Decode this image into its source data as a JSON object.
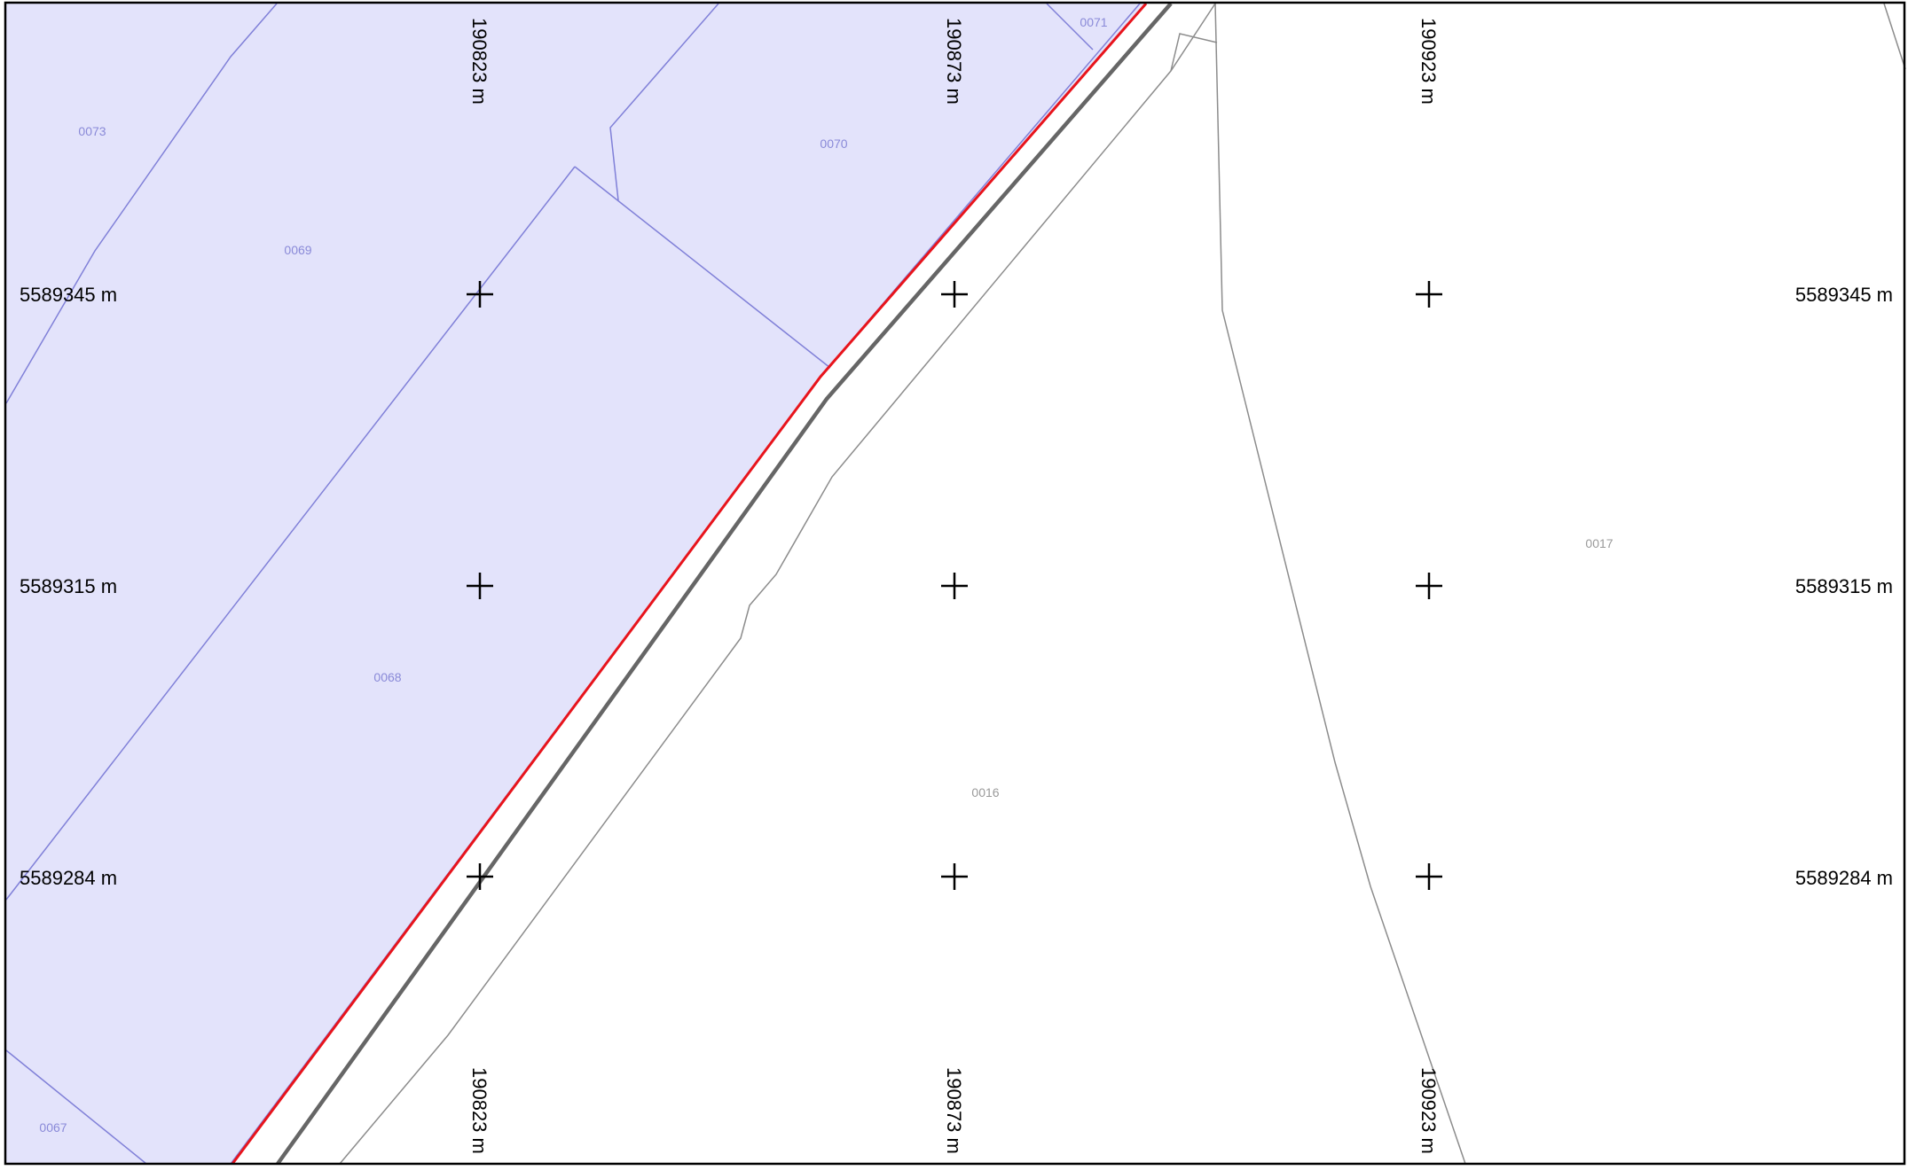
{
  "map": {
    "colors": {
      "parcel_fill": "#e3e3fb",
      "parcel_line": "#8080d8",
      "boundary_red": "#e8141c",
      "road_line": "#666666",
      "thin_line": "#8c8c8c",
      "frame": "#000000"
    },
    "grid": {
      "easting_labels": [
        "190823 m",
        "190873 m",
        "190923 m"
      ],
      "northing_labels": [
        "5589345 m",
        "5589315 m",
        "5589284 m"
      ],
      "marker_icon": "cross-marker-icon"
    },
    "parcels": {
      "p0073": "0073",
      "p0069": "0069",
      "p0070": "0070",
      "p0071": "0071",
      "p0068": "0068",
      "p0067": "0067",
      "p0016": "0016",
      "p0017": "0017"
    }
  }
}
